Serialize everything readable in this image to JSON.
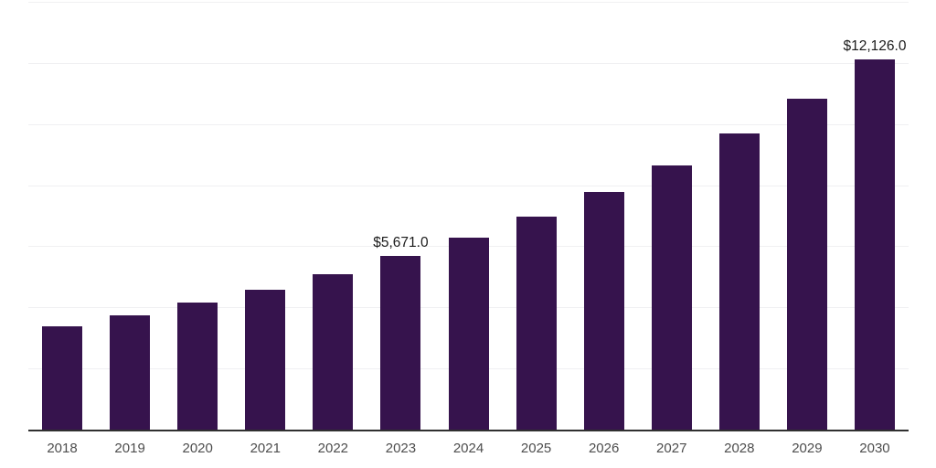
{
  "chart": {
    "background_color": "#ffffff",
    "bar_color": "#36134d",
    "axis_line_color": "#303030",
    "gridline_color": "#f0f0f2",
    "value_label_color": "#1b1b1b",
    "tick_label_color": "#4d4d4d"
  },
  "chart_data": {
    "type": "bar",
    "title": "",
    "xlabel": "",
    "ylabel": "",
    "categories": [
      "2018",
      "2019",
      "2020",
      "2021",
      "2022",
      "2023",
      "2024",
      "2025",
      "2026",
      "2027",
      "2028",
      "2029",
      "2030"
    ],
    "values": [
      3370,
      3730,
      4145,
      4590,
      5100,
      5671,
      6290,
      6980,
      7785,
      8650,
      9690,
      10825,
      12126
    ],
    "data_labels": {
      "2023": "$5,671.0",
      "2030": "$12,126.0"
    },
    "ylim": [
      0,
      14000
    ],
    "gridline_interval": 2000,
    "grid": "horizontal",
    "y_tick_labels_shown": false,
    "legend_position": "none"
  }
}
